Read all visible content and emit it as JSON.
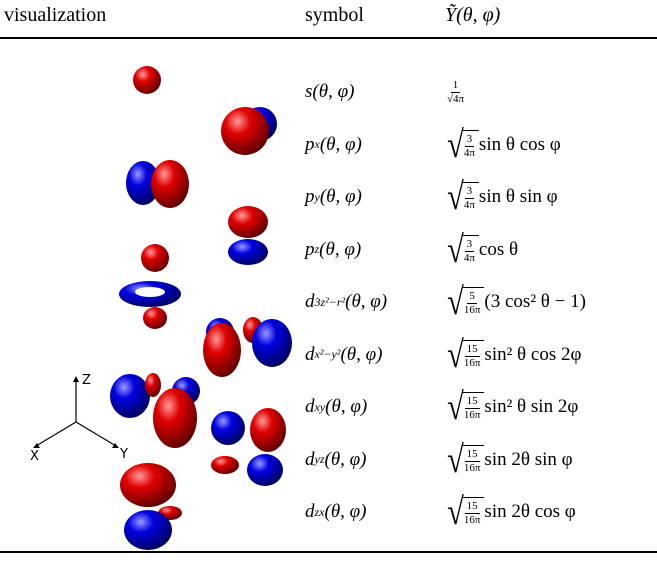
{
  "header": {
    "columns": [
      "visualization",
      "symbol",
      "Ỹ(θ, φ)"
    ]
  },
  "axes": {
    "z": "Z",
    "y": "Y",
    "x": "X"
  },
  "rows": [
    {
      "symbol": {
        "base": "s",
        "sub": "",
        "args": "(θ, φ)"
      },
      "formula": {
        "sqrt": false,
        "num": "1",
        "den": "√4π",
        "rest": ""
      }
    },
    {
      "symbol": {
        "base": "p",
        "sub": "x",
        "args": "(θ, φ)"
      },
      "formula": {
        "sqrt": true,
        "num": "3",
        "den": "4π",
        "rest": "sin θ cos φ"
      }
    },
    {
      "symbol": {
        "base": "p",
        "sub": "y",
        "args": "(θ, φ)"
      },
      "formula": {
        "sqrt": true,
        "num": "3",
        "den": "4π",
        "rest": "sin θ sin φ"
      }
    },
    {
      "symbol": {
        "base": "p",
        "sub": "z",
        "args": "(θ, φ)"
      },
      "formula": {
        "sqrt": true,
        "num": "3",
        "den": "4π",
        "rest": "cos θ"
      }
    },
    {
      "symbol": {
        "base": "d",
        "sub": "3z²−r²",
        "args": "(θ, φ)"
      },
      "formula": {
        "sqrt": true,
        "num": "5",
        "den": "16π",
        "rest": "(3 cos² θ − 1)"
      }
    },
    {
      "symbol": {
        "base": "d",
        "sub": "x²−y²",
        "args": "(θ, φ)"
      },
      "formula": {
        "sqrt": true,
        "num": "15",
        "den": "16π",
        "rest": "sin² θ cos 2φ"
      }
    },
    {
      "symbol": {
        "base": "d",
        "sub": "xy",
        "args": "(θ, φ)"
      },
      "formula": {
        "sqrt": true,
        "num": "15",
        "den": "16π",
        "rest": "sin² θ sin 2φ"
      }
    },
    {
      "symbol": {
        "base": "d",
        "sub": "yz",
        "args": "(θ, φ)"
      },
      "formula": {
        "sqrt": true,
        "num": "15",
        "den": "16π",
        "rest": "sin 2θ sin φ"
      }
    },
    {
      "symbol": {
        "base": "d",
        "sub": "zx",
        "args": "(θ, φ)"
      },
      "formula": {
        "sqrt": true,
        "num": "15",
        "den": "16π",
        "rest": "sin 2θ cos φ"
      }
    }
  ]
}
